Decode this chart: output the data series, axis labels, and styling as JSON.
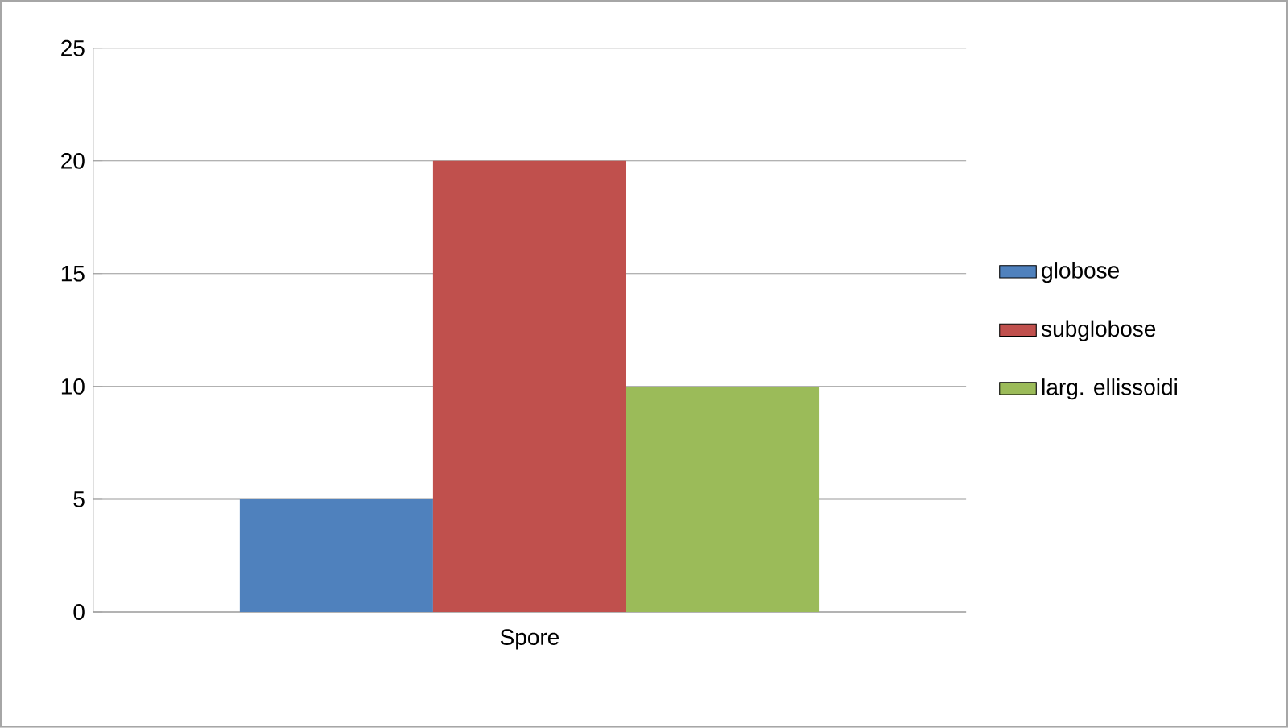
{
  "chart_data": {
    "type": "bar",
    "categories": [
      "Spore"
    ],
    "series": [
      {
        "name": "globose",
        "color": "#4f81bd",
        "values": [
          5
        ]
      },
      {
        "name": "subglobose",
        "color": "#c0504d",
        "values": [
          20
        ]
      },
      {
        "name": "larg. ellissoidi",
        "color": "#9bbb59",
        "values": [
          10
        ]
      }
    ],
    "ylim": [
      0,
      25
    ],
    "yticks": [
      0,
      5,
      10,
      15,
      20,
      25
    ],
    "grid": "y",
    "legend": "right"
  }
}
